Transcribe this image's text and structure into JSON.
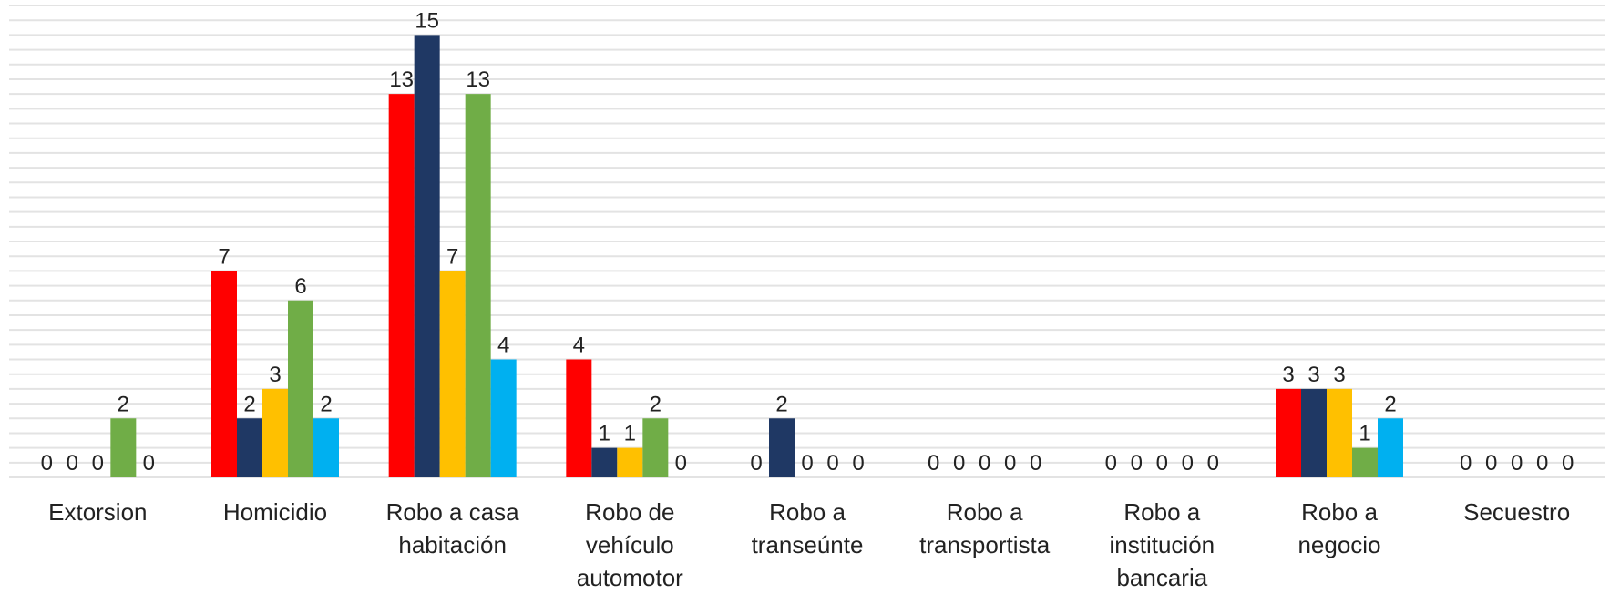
{
  "chart_data": {
    "type": "bar",
    "categories": [
      "Extorsion",
      "Homicidio",
      "Robo a casa habitación",
      "Robo de vehículo automotor",
      "Robo a transeúnte",
      "Robo a transportista",
      "Robo a institución bancaria",
      "Robo a negocio",
      "Secuestro"
    ],
    "series": [
      {
        "color": "#ff0000",
        "values": [
          0,
          7,
          13,
          4,
          0,
          0,
          0,
          3,
          0
        ]
      },
      {
        "color": "#1f3864",
        "values": [
          0,
          2,
          15,
          1,
          2,
          0,
          0,
          3,
          0
        ]
      },
      {
        "color": "#ffc000",
        "values": [
          0,
          3,
          7,
          1,
          0,
          0,
          0,
          3,
          0
        ]
      },
      {
        "color": "#70ad47",
        "values": [
          2,
          6,
          13,
          2,
          0,
          0,
          0,
          1,
          0
        ]
      },
      {
        "color": "#00b0f0",
        "values": [
          0,
          2,
          4,
          0,
          0,
          0,
          0,
          2,
          0
        ]
      }
    ],
    "ylim": [
      0,
      16
    ],
    "yticks": [
      0,
      0.5,
      1,
      1.5,
      2,
      2.5,
      3,
      3.5,
      4,
      4.5,
      5,
      5.5,
      6,
      6.5,
      7,
      7.5,
      8,
      8.5,
      9,
      9.5,
      10,
      10.5,
      11,
      11.5,
      12,
      12.5,
      13,
      13.5,
      14,
      14.5,
      15,
      15.5,
      16
    ],
    "grid": true
  }
}
